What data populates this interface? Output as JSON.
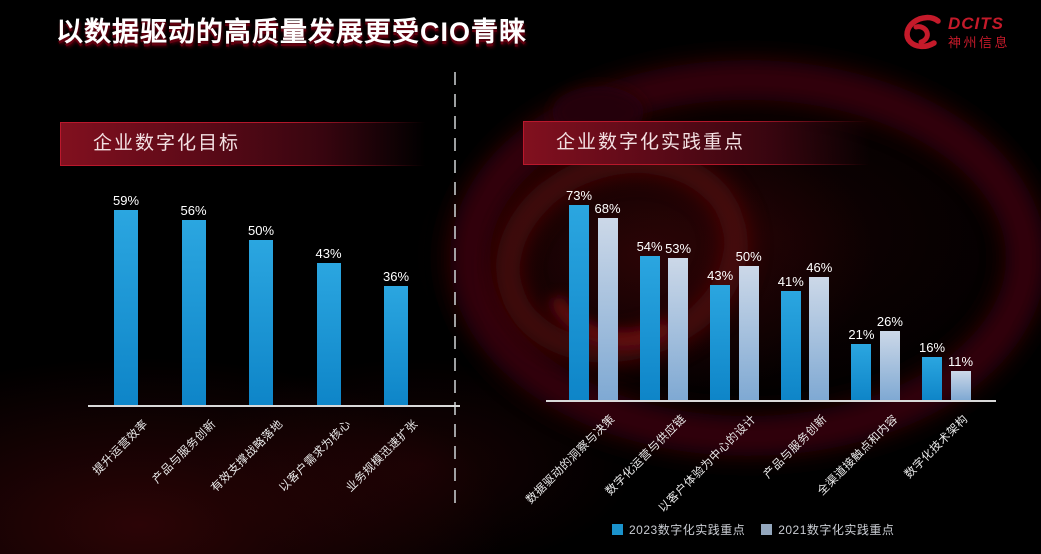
{
  "title": "以数据驱动的高质量发展更受CIO青睐",
  "logo": {
    "brand": "DCITS",
    "subtitle": "神州信息",
    "color": "#c41a2a"
  },
  "colors": {
    "accent_red": "#c41a2a",
    "banner_border": "#c01a2e",
    "bar_2023_top": "#2ba6e0",
    "bar_2023_bottom": "#0e85c8",
    "bar_2021_top": "#ccd8e8",
    "bar_2021_bottom": "#7fa9d3",
    "legend_2023_swatch": "#1b93cc",
    "legend_2021_swatch": "#93a7bd",
    "axis_line": "#d9d9d9"
  },
  "panels": [
    {
      "header": "企业数字化目标"
    },
    {
      "header": "企业数字化实践重点"
    }
  ],
  "chart_data": [
    {
      "type": "bar",
      "title": "企业数字化目标",
      "categories": [
        "提升运营效率",
        "产品与服务创新",
        "有效支撑战略落地",
        "以客户需求为核心",
        "业务规模迅速扩张"
      ],
      "values": [
        59,
        56,
        50,
        43,
        36
      ],
      "value_labels": [
        "59%",
        "56%",
        "50%",
        "43%",
        "36%"
      ],
      "xlabel": "",
      "ylabel": "",
      "ylim": [
        0,
        65
      ],
      "grid": false,
      "legend_position": "none"
    },
    {
      "type": "bar",
      "title": "企业数字化实践重点",
      "categories": [
        "数据驱动的洞察与决策",
        "数字化运营与供应链",
        "以客户体验为中心的设计",
        "产品与服务创新",
        "全渠道接触点和内容",
        "数字化技术架构"
      ],
      "series": [
        {
          "name": "2023数字化实践重点",
          "values": [
            73,
            54,
            43,
            41,
            21,
            16
          ],
          "value_labels": [
            "73%",
            "54%",
            "43%",
            "41%",
            "21%",
            "16%"
          ],
          "color": "#1b93cc"
        },
        {
          "name": "2021数字化实践重点",
          "values": [
            68,
            53,
            50,
            46,
            26,
            11
          ],
          "value_labels": [
            "68%",
            "53%",
            "50%",
            "46%",
            "26%",
            "11%"
          ],
          "color": "#93a7bd"
        }
      ],
      "xlabel": "",
      "ylabel": "",
      "ylim": [
        0,
        80
      ],
      "grid": false,
      "legend_position": "bottom"
    }
  ]
}
